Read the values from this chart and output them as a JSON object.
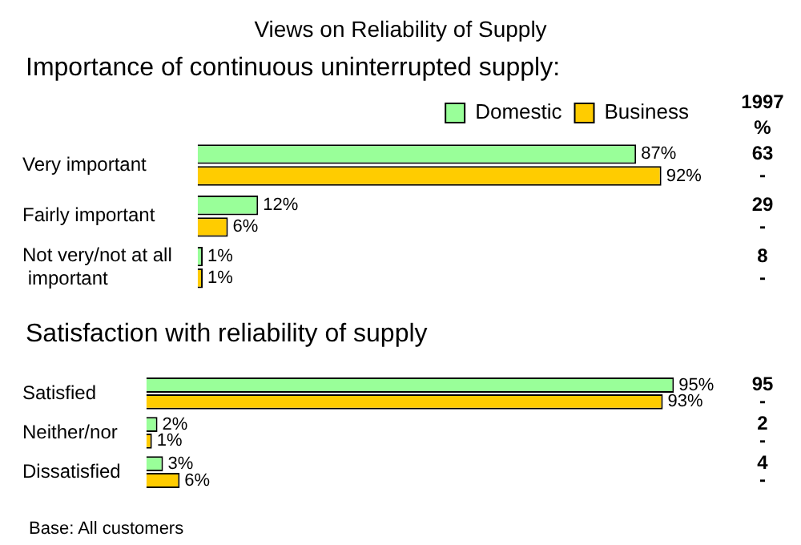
{
  "chart_data": [
    {
      "type": "bar",
      "orientation": "horizontal",
      "title": "Views on Reliability of Supply",
      "subtitle": "Importance of continuous uninterrupted supply:",
      "categories": [
        "Very important",
        "Fairly important",
        "Not very/not at all important"
      ],
      "series": [
        {
          "name": "Domestic",
          "color": "#99ff99",
          "values": [
            87,
            12,
            1
          ],
          "value_labels": [
            "87%",
            "12%",
            "1%"
          ]
        },
        {
          "name": "Business",
          "color": "#ffcc00",
          "values": [
            92,
            6,
            1
          ],
          "value_labels": [
            "92%",
            "6%",
            "1%"
          ]
        }
      ],
      "legend": "top",
      "grid": false,
      "tick_labels": "y",
      "annotations": [
        "1997",
        "%",
        "63",
        "-",
        "29",
        "-",
        "8",
        "-"
      ]
    },
    {
      "type": "bar",
      "orientation": "horizontal",
      "title": "Satisfaction with reliability of supply",
      "categories": [
        "Satisfied",
        "Neither/nor",
        "Dissatisfied"
      ],
      "series": [
        {
          "color": "#99ff99",
          "values": [
            95,
            2,
            3
          ],
          "value_labels": [
            "95%",
            "2%",
            "3%"
          ]
        },
        {
          "color": "#ffcc00",
          "values": [
            93,
            1,
            6
          ],
          "value_labels": [
            "93%",
            "1%",
            "6%"
          ]
        }
      ],
      "legend": false,
      "grid": false,
      "tick_labels": "y",
      "annotations": [
        "95",
        "-",
        "2",
        "-",
        "4",
        "-",
        "Base: All customers"
      ]
    }
  ]
}
